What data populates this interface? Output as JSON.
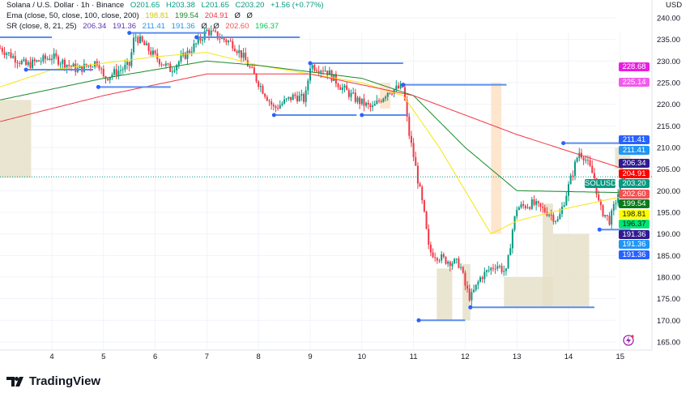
{
  "header": {
    "symbol": "Solana / U.S. Dollar · 1h · Binance",
    "o": "O201.65",
    "h": "H203.38",
    "l": "L201.65",
    "c": "C203.20",
    "chg": "+1.56 (+0.77%)"
  },
  "ema": {
    "label": "Ema (close, 50, close, 100, close, 200)",
    "v1": "198.81",
    "v2": "199.54",
    "v3": "204.91",
    "e1": "Ø",
    "e2": "Ø"
  },
  "sr": {
    "label": "SR (close, 8, 21, 25)",
    "v1": "206.34",
    "v2": "191.36",
    "v3": "211.41",
    "v4": "191.36",
    "e1": "Ø",
    "e2": "Ø",
    "v5": "202.60",
    "v6": "196.37"
  },
  "currency": "USD",
  "symbol_tag": "SOLUSD",
  "brand": "TradingView",
  "colors": {
    "up": "#089981",
    "down": "#f23645",
    "ema50": "#f5e50f",
    "ema100": "#1b8a2a",
    "ema200": "#f23645"
  },
  "price_tags": [
    {
      "v": "228.68",
      "p": 228.68,
      "c": "#e91ee0"
    },
    {
      "v": "225.14",
      "p": 225.14,
      "c": "#f25bed"
    },
    {
      "v": "211.41",
      "p": 211.8,
      "c": "#2962ff"
    },
    {
      "v": "211.41",
      "p": 209.4,
      "c": "#2196f3"
    },
    {
      "v": "206.34",
      "p": 206.34,
      "c": "#311b92"
    },
    {
      "v": "204.91",
      "p": 204.91,
      "c": "#ff0000"
    },
    {
      "v": "203.20",
      "p": 203.2,
      "c": "#089981"
    },
    {
      "v": "202.60",
      "p": 200.8,
      "c": "#f25252"
    },
    {
      "v": "199.54",
      "p": 198.6,
      "c": "#0b7a1a"
    },
    {
      "v": "198.81",
      "p": 196.3,
      "c": "#ffff00",
      "fg": "#131722"
    },
    {
      "v": "196.37",
      "p": 194.0,
      "c": "#00e676",
      "fg": "#131722"
    },
    {
      "v": "191.36",
      "p": 191.5,
      "c": "#311b92"
    },
    {
      "v": "191.36",
      "p": 189.2,
      "c": "#2196f3"
    },
    {
      "v": "191.36",
      "p": 186.9,
      "c": "#2962ff"
    }
  ],
  "chart_data": {
    "type": "candlestick",
    "title": "Solana / U.S. Dollar · 1h · Binance",
    "ylabel": "USD",
    "ylim": [
      165,
      240
    ],
    "y_ticks": [
      "165.00",
      "170.00",
      "175.00",
      "180.00",
      "185.00",
      "190.00",
      "195.00",
      "200.00",
      "205.00",
      "210.00",
      "215.00",
      "220.00",
      "225.00",
      "230.00",
      "235.00",
      "240.00"
    ],
    "x_ticks": [
      "4",
      "5",
      "6",
      "7",
      "8",
      "9",
      "10",
      "11",
      "12",
      "13",
      "14",
      "15"
    ],
    "price_path": [
      [
        3.0,
        233
      ],
      [
        3.5,
        229
      ],
      [
        4.0,
        231
      ],
      [
        4.5,
        228
      ],
      [
        4.9,
        230
      ],
      [
        5.0,
        226
      ],
      [
        5.5,
        229
      ],
      [
        5.6,
        236
      ],
      [
        6.0,
        231
      ],
      [
        6.3,
        228
      ],
      [
        6.8,
        234
      ],
      [
        7.0,
        237
      ],
      [
        7.5,
        234
      ],
      [
        7.7,
        231
      ],
      [
        8.0,
        225
      ],
      [
        8.3,
        219
      ],
      [
        8.7,
        222
      ],
      [
        8.9,
        221
      ],
      [
        9.0,
        229
      ],
      [
        9.3,
        228
      ],
      [
        9.6,
        224
      ],
      [
        9.9,
        221
      ],
      [
        10.2,
        219
      ],
      [
        10.5,
        223
      ],
      [
        10.8,
        224
      ],
      [
        10.9,
        214
      ],
      [
        11.0,
        208
      ],
      [
        11.2,
        195
      ],
      [
        11.3,
        186
      ],
      [
        11.6,
        184
      ],
      [
        11.9,
        183
      ],
      [
        12.0,
        178
      ],
      [
        12.1,
        175
      ],
      [
        12.3,
        180
      ],
      [
        12.6,
        183
      ],
      [
        12.8,
        181
      ],
      [
        12.9,
        190
      ],
      [
        13.0,
        196
      ],
      [
        13.3,
        197
      ],
      [
        13.6,
        195
      ],
      [
        13.8,
        193
      ],
      [
        14.0,
        201
      ],
      [
        14.2,
        209
      ],
      [
        14.3,
        208
      ],
      [
        14.5,
        203
      ],
      [
        14.6,
        196
      ],
      [
        14.8,
        193
      ],
      [
        15.0,
        201
      ],
      [
        15.1,
        203.2
      ]
    ],
    "ema50": [
      [
        3,
        224
      ],
      [
        4,
        228
      ],
      [
        6,
        231
      ],
      [
        7,
        232
      ],
      [
        8,
        229
      ],
      [
        10,
        225
      ],
      [
        10.8,
        222
      ],
      [
        11.5,
        210
      ],
      [
        12.5,
        190
      ],
      [
        13,
        193
      ],
      [
        14,
        196
      ],
      [
        15.1,
        198.81
      ]
    ],
    "ema100": [
      [
        3,
        221
      ],
      [
        5,
        226
      ],
      [
        7,
        230
      ],
      [
        8,
        229
      ],
      [
        10,
        226
      ],
      [
        11,
        222
      ],
      [
        12,
        210
      ],
      [
        13,
        200
      ],
      [
        15.1,
        199.54
      ]
    ],
    "ema200": [
      [
        3,
        216
      ],
      [
        5,
        222
      ],
      [
        7,
        227
      ],
      [
        9,
        227
      ],
      [
        11,
        222
      ],
      [
        13,
        213
      ],
      [
        15.1,
        204.91
      ]
    ],
    "sr_levels": [
      [
        2.9,
        4.0,
        235.5
      ],
      [
        3.5,
        4.8,
        228
      ],
      [
        4.9,
        6.3,
        224
      ],
      [
        5.5,
        7.0,
        236.5
      ],
      [
        6.8,
        8.8,
        235.5
      ],
      [
        8.3,
        9.9,
        217.5
      ],
      [
        9.0,
        10.8,
        229.5
      ],
      [
        10.0,
        10.9,
        217.5
      ],
      [
        10.8,
        12.8,
        224.5
      ],
      [
        11.1,
        12.0,
        170
      ],
      [
        12.1,
        14.5,
        173
      ],
      [
        13.9,
        15.2,
        211
      ],
      [
        14.6,
        15.2,
        191
      ]
    ],
    "zones": [
      [
        2.9,
        3.6,
        221,
        203
      ],
      [
        11.45,
        11.75,
        182,
        170
      ],
      [
        11.95,
        12.1,
        183,
        170
      ],
      [
        12.75,
        13.7,
        180,
        173
      ],
      [
        13.5,
        13.7,
        197,
        173
      ],
      [
        13.7,
        14.4,
        190,
        173
      ],
      [
        14.9,
        15.2,
        210,
        205
      ],
      [
        10.35,
        10.55,
        225,
        219
      ],
      [
        12.5,
        12.7,
        225,
        190
      ]
    ]
  }
}
